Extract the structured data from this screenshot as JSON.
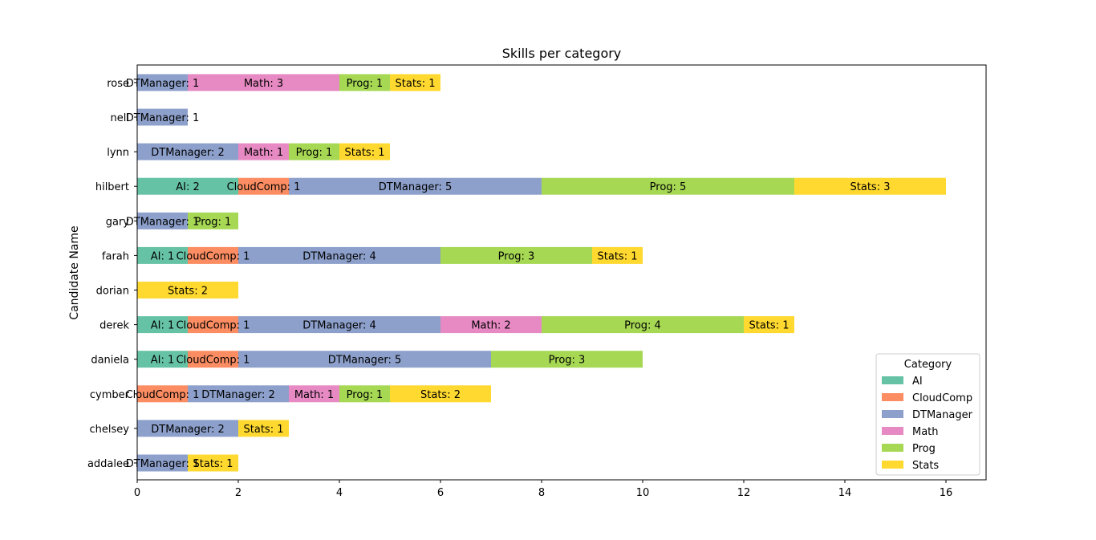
{
  "chart_data": {
    "type": "bar",
    "orientation": "horizontal",
    "stacked": true,
    "title": "Skills per category",
    "xlabel": "",
    "ylabel": "Candidate Name",
    "xlim": [
      0,
      16.8
    ],
    "xticks": [
      0,
      2,
      4,
      6,
      8,
      10,
      12,
      14,
      16
    ],
    "categories": [
      "addalee",
      "chelsey",
      "cymber",
      "daniela",
      "derek",
      "dorian",
      "farah",
      "gary",
      "hilbert",
      "lynn",
      "nell",
      "rose"
    ],
    "series": [
      {
        "name": "AI",
        "color": "#66c2a5",
        "values": [
          0,
          0,
          0,
          1,
          1,
          0,
          1,
          0,
          2,
          0,
          0,
          0
        ]
      },
      {
        "name": "CloudComp",
        "color": "#fc8d62",
        "values": [
          0,
          0,
          1,
          1,
          1,
          0,
          1,
          0,
          1,
          0,
          0,
          0
        ]
      },
      {
        "name": "DTManager",
        "color": "#8da0cb",
        "values": [
          1,
          2,
          2,
          5,
          4,
          0,
          4,
          1,
          5,
          2,
          1,
          1
        ]
      },
      {
        "name": "Math",
        "color": "#e78ac3",
        "values": [
          0,
          0,
          1,
          0,
          2,
          0,
          0,
          0,
          0,
          1,
          0,
          3
        ]
      },
      {
        "name": "Prog",
        "color": "#a6d854",
        "values": [
          0,
          0,
          1,
          3,
          4,
          0,
          3,
          1,
          5,
          1,
          0,
          1
        ]
      },
      {
        "name": "Stats",
        "color": "#ffd92f",
        "values": [
          1,
          1,
          2,
          0,
          1,
          2,
          1,
          0,
          3,
          1,
          0,
          1
        ]
      }
    ],
    "legend": {
      "title": "Category",
      "placement": "lower-right"
    },
    "grid": false
  }
}
